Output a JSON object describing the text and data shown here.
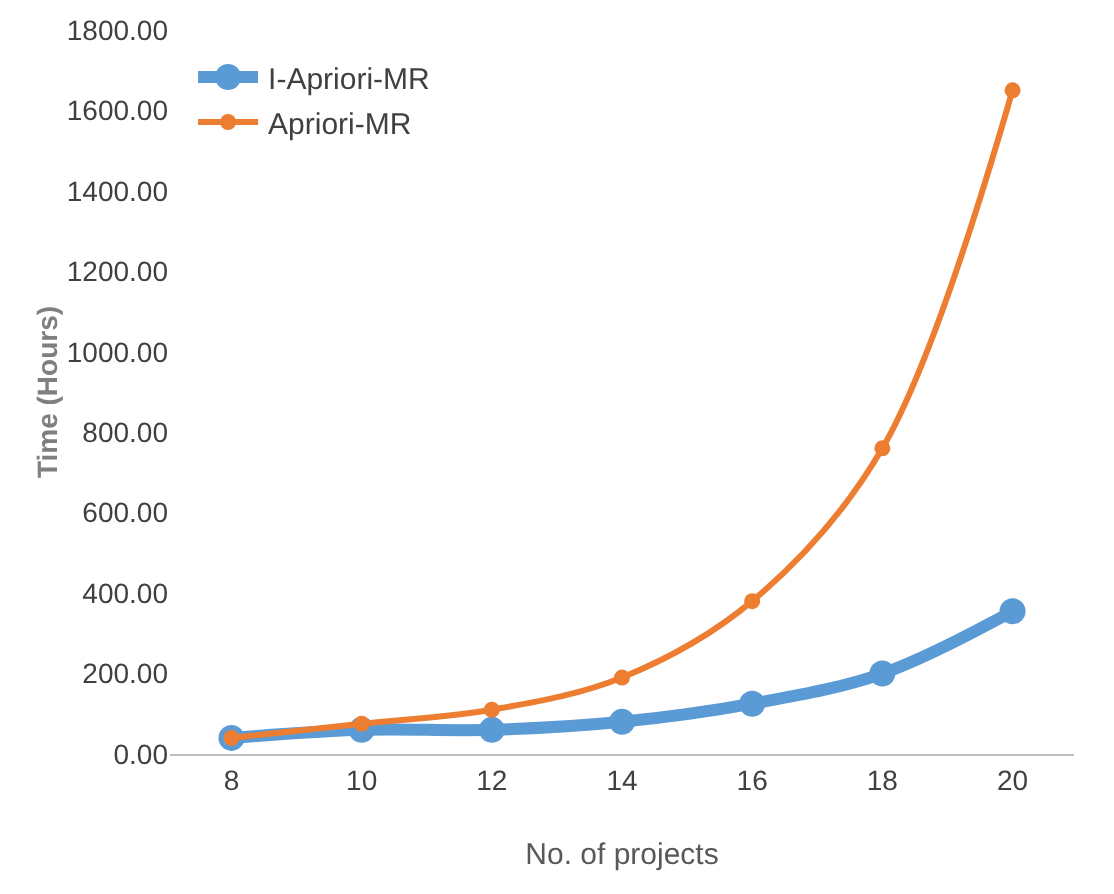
{
  "chart_data": {
    "type": "line",
    "xlabel": "No. of projects",
    "ylabel": "Time (Hours)",
    "categories": [
      "8",
      "10",
      "12",
      "14",
      "16",
      "18",
      "20"
    ],
    "series": [
      {
        "name": "I-Apriori-MR",
        "color": "#5b9bd5",
        "values": [
          40,
          60,
          60,
          80,
          125,
          200,
          355
        ]
      },
      {
        "name": "Apriori-MR",
        "color": "#ed7d31",
        "values": [
          40,
          75,
          110,
          190,
          380,
          760,
          1650
        ]
      }
    ],
    "ylim": [
      0,
      1800
    ],
    "yticks": [
      {
        "value": 0,
        "label": "0.00"
      },
      {
        "value": 200,
        "label": "200.00"
      },
      {
        "value": 400,
        "label": "400.00"
      },
      {
        "value": 600,
        "label": "600.00"
      },
      {
        "value": 800,
        "label": "800.00"
      },
      {
        "value": 1000,
        "label": "1000.00"
      },
      {
        "value": 1200,
        "label": "1200.00"
      },
      {
        "value": 1400,
        "label": "1400.00"
      },
      {
        "value": 1600,
        "label": "1600.00"
      },
      {
        "value": 1800,
        "label": "1800.00"
      }
    ],
    "grid": false,
    "legend": "top left",
    "marker": "circle",
    "line_style": "solid"
  }
}
